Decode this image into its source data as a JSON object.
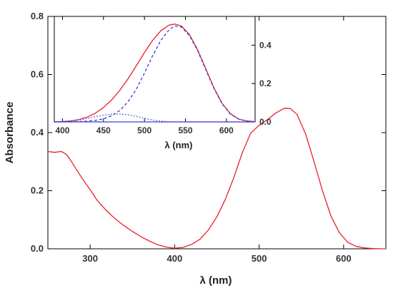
{
  "chart_data": [
    {
      "name": "main",
      "type": "line",
      "xlabel": "λ (nm)",
      "ylabel": "Absorbance",
      "xlim": [
        250,
        650
      ],
      "ylim": [
        0.0,
        0.8
      ],
      "x_ticks": [
        300,
        400,
        500,
        600
      ],
      "y_ticks": [
        0.0,
        0.2,
        0.4,
        0.6,
        0.8
      ],
      "x_tick_labels": [
        "300",
        "400",
        "500",
        "600"
      ],
      "y_tick_labels": [
        "0.0",
        "0.2",
        "0.4",
        "0.6",
        "0.8"
      ],
      "grid": false,
      "series": [
        {
          "color": "#e8212b",
          "style": "solid",
          "x": [
            250,
            258,
            266,
            272,
            278,
            284,
            290,
            296,
            302,
            308,
            314,
            320,
            326,
            332,
            338,
            344,
            350,
            360,
            370,
            380,
            390,
            400,
            410,
            420,
            430,
            440,
            450,
            460,
            470,
            480,
            490,
            500,
            510,
            520,
            530,
            537,
            545,
            555,
            565,
            575,
            585,
            595,
            605,
            615,
            625,
            635,
            645,
            650
          ],
          "y": [
            0.335,
            0.332,
            0.335,
            0.325,
            0.3,
            0.272,
            0.245,
            0.22,
            0.195,
            0.168,
            0.148,
            0.13,
            0.113,
            0.098,
            0.084,
            0.072,
            0.06,
            0.042,
            0.027,
            0.014,
            0.006,
            0.002,
            0.005,
            0.015,
            0.033,
            0.065,
            0.11,
            0.17,
            0.245,
            0.33,
            0.398,
            0.425,
            0.445,
            0.468,
            0.484,
            0.483,
            0.462,
            0.395,
            0.3,
            0.2,
            0.113,
            0.055,
            0.022,
            0.008,
            0.003,
            0.001,
            0.0,
            0.0
          ]
        }
      ]
    },
    {
      "name": "inset",
      "type": "line",
      "xlabel": "λ (nm)",
      "ylabel": "",
      "xlim": [
        390,
        635
      ],
      "ylim": [
        0.0,
        0.55
      ],
      "x_ticks": [
        400,
        450,
        500,
        550,
        600
      ],
      "y_ticks": [
        0.0,
        0.2,
        0.4
      ],
      "x_tick_labels": [
        "400",
        "450",
        "500",
        "550",
        "600"
      ],
      "y_tick_labels": [
        "0.0",
        "0.2",
        "0.4"
      ],
      "y_axis_side": "right",
      "grid": false,
      "series": [
        {
          "color": "#e8212b",
          "style": "solid",
          "x": [
            390,
            400,
            410,
            420,
            430,
            440,
            450,
            460,
            470,
            480,
            490,
            500,
            510,
            520,
            530,
            537,
            545,
            555,
            565,
            575,
            585,
            595,
            605,
            615,
            625,
            635
          ],
          "y": [
            0.0,
            0.002,
            0.005,
            0.012,
            0.025,
            0.045,
            0.075,
            0.115,
            0.165,
            0.225,
            0.292,
            0.362,
            0.425,
            0.475,
            0.505,
            0.51,
            0.5,
            0.455,
            0.375,
            0.275,
            0.175,
            0.095,
            0.042,
            0.015,
            0.005,
            0.001
          ]
        },
        {
          "color": "#3d3dd6",
          "style": "dashed",
          "x": [
            390,
            400,
            410,
            420,
            430,
            440,
            450,
            460,
            470,
            480,
            490,
            500,
            510,
            520,
            530,
            537,
            545,
            555,
            565,
            575,
            585,
            595,
            605,
            615,
            625,
            635
          ],
          "y": [
            0.0,
            0.0,
            0.001,
            0.002,
            0.004,
            0.008,
            0.016,
            0.032,
            0.06,
            0.105,
            0.17,
            0.255,
            0.345,
            0.425,
            0.48,
            0.5,
            0.495,
            0.45,
            0.37,
            0.27,
            0.172,
            0.093,
            0.04,
            0.014,
            0.004,
            0.001
          ]
        },
        {
          "color": "#3d3dd6",
          "style": "dotted",
          "x": [
            390,
            400,
            410,
            420,
            430,
            440,
            450,
            460,
            470,
            480,
            490,
            500,
            510,
            520,
            530,
            540,
            560,
            600,
            635
          ],
          "y": [
            0.0,
            0.002,
            0.005,
            0.01,
            0.018,
            0.027,
            0.035,
            0.04,
            0.041,
            0.037,
            0.029,
            0.019,
            0.01,
            0.004,
            0.001,
            0.0,
            0.0,
            0.0,
            0.0
          ]
        }
      ]
    }
  ]
}
